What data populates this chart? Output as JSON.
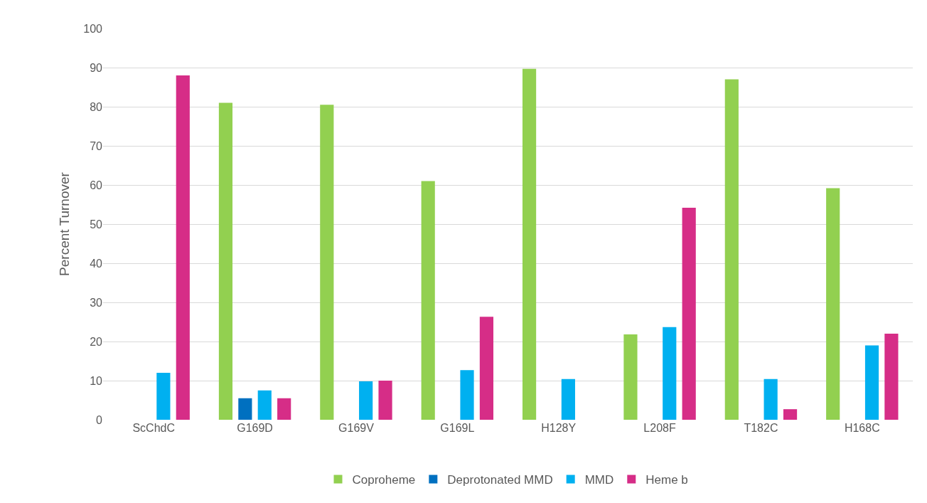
{
  "chart_data": {
    "type": "bar",
    "ylabel": "Percent Turnover",
    "categories": [
      "ScChdC",
      "G169D",
      "G169V",
      "G169L",
      "H128Y",
      "L208F",
      "T182C",
      "H168C"
    ],
    "series": [
      {
        "name": "Coproheme",
        "color": "#92d050",
        "values": [
          null,
          81,
          80.5,
          61,
          89.7,
          21.8,
          87,
          59.2
        ]
      },
      {
        "name": "Deprotonated MMD",
        "color": "#0070c0",
        "values": [
          null,
          5.5,
          null,
          null,
          null,
          null,
          null,
          null
        ]
      },
      {
        "name": "MMD",
        "color": "#00b0f0",
        "values": [
          12,
          7.5,
          9.8,
          12.7,
          10.4,
          23.7,
          10.4,
          19
        ]
      },
      {
        "name": "Heme b",
        "color": "#d62d87",
        "values": [
          88,
          5.5,
          10,
          26.3,
          null,
          54.2,
          2.7,
          22
        ]
      }
    ],
    "ylim": [
      0,
      100
    ],
    "yticks": [
      0,
      10,
      20,
      30,
      40,
      50,
      60,
      70,
      80,
      90,
      100
    ],
    "grid": "y",
    "legend": "bottom"
  }
}
